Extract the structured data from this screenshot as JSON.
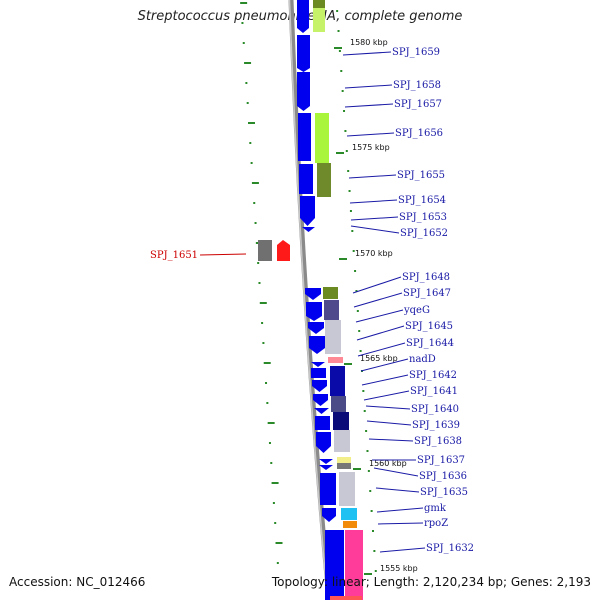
{
  "title": "Streptococcus pneumoniae JJA, complete genome",
  "footer": {
    "accession": "Accession: NC_012466",
    "summary": "Topology: linear; Length: 2,120,234 bp; Genes: 2,193"
  },
  "colors": {
    "backbone": "#8a8a8a",
    "gene_forward": "#0000ee",
    "label_normal": "#1a1aa6",
    "label_highlight": "#cc0000",
    "tick": "#2a8a2a"
  },
  "scale_marks": [
    {
      "label": "1580 kbp"
    },
    {
      "label": "1575 kbp"
    },
    {
      "label": "1570 kbp"
    },
    {
      "label": "1565 kbp"
    },
    {
      "label": "1560 kbp"
    },
    {
      "label": "1555 kbp"
    }
  ],
  "genes": [
    {
      "label": "SPJ_1659"
    },
    {
      "label": "SPJ_1658"
    },
    {
      "label": "SPJ_1657"
    },
    {
      "label": "SPJ_1656"
    },
    {
      "label": "SPJ_1655"
    },
    {
      "label": "SPJ_1654"
    },
    {
      "label": "SPJ_1653"
    },
    {
      "label": "SPJ_1652"
    },
    {
      "label": "SPJ_1651",
      "highlight": true
    },
    {
      "label": "SPJ_1648"
    },
    {
      "label": "SPJ_1647"
    },
    {
      "label": "yqeG"
    },
    {
      "label": "SPJ_1645"
    },
    {
      "label": "SPJ_1644"
    },
    {
      "label": "nadD"
    },
    {
      "label": "SPJ_1642"
    },
    {
      "label": "SPJ_1641"
    },
    {
      "label": "SPJ_1640"
    },
    {
      "label": "SPJ_1639"
    },
    {
      "label": "SPJ_1638"
    },
    {
      "label": "SPJ_1637"
    },
    {
      "label": "SPJ_1636"
    },
    {
      "label": "SPJ_1635"
    },
    {
      "label": "gmk"
    },
    {
      "label": "rpoZ"
    },
    {
      "label": "SPJ_1632"
    }
  ]
}
